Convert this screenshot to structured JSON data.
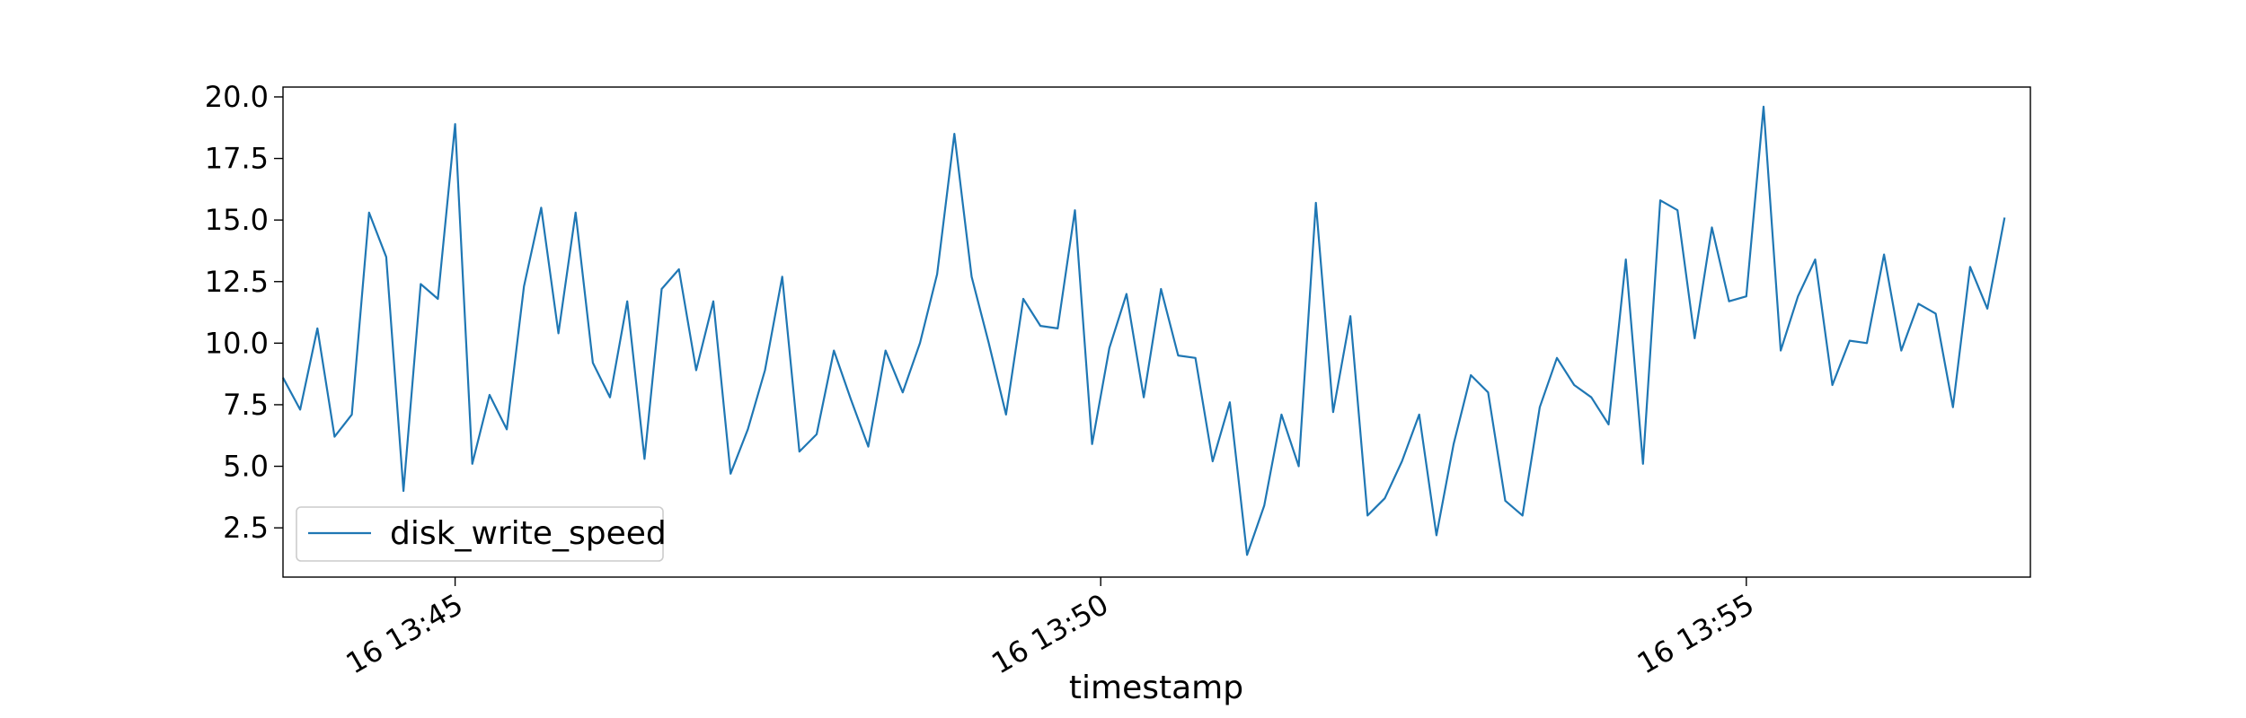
{
  "chart_data": {
    "type": "line",
    "title": "",
    "xlabel": "timestamp",
    "ylabel": "",
    "x_tick_labels": [
      "16 13:45",
      "16 13:50",
      "16 13:55"
    ],
    "y_tick_labels": [
      "2.5",
      "5.0",
      "7.5",
      "10.0",
      "12.5",
      "15.0",
      "17.5",
      "20.0"
    ],
    "x_ticks_minutes": [
      45,
      50,
      55
    ],
    "y_ticks": [
      2.5,
      5.0,
      7.5,
      10.0,
      12.5,
      15.0,
      17.5,
      20.0
    ],
    "xlim_minutes": [
      43.667,
      57.2
    ],
    "ylim": [
      0.5,
      20.4
    ],
    "grid": false,
    "legend_position": "lower-left",
    "series": [
      {
        "name": "disk_write_speed",
        "color": "#1f77b4",
        "x_start": "16 13:43:40",
        "x_step_seconds": 8,
        "values": [
          8.6,
          7.3,
          10.6,
          6.2,
          7.1,
          15.3,
          13.5,
          4.0,
          12.4,
          11.8,
          18.9,
          5.1,
          7.9,
          6.5,
          12.3,
          15.5,
          10.4,
          15.3,
          9.2,
          7.8,
          11.7,
          5.3,
          12.2,
          13.0,
          8.9,
          11.7,
          4.7,
          6.5,
          8.9,
          12.7,
          5.6,
          6.3,
          9.7,
          7.7,
          5.8,
          9.7,
          8.0,
          10.0,
          12.8,
          18.5,
          12.7,
          10.0,
          7.1,
          11.8,
          10.7,
          10.6,
          15.4,
          5.9,
          9.8,
          12.0,
          7.8,
          12.2,
          9.5,
          9.4,
          5.2,
          7.6,
          1.4,
          3.4,
          7.1,
          5.0,
          15.7,
          7.2,
          11.1,
          3.0,
          3.7,
          5.2,
          7.1,
          2.2,
          5.9,
          8.7,
          8.0,
          3.6,
          3.0,
          7.4,
          9.4,
          8.3,
          7.8,
          6.7,
          13.4,
          5.1,
          15.8,
          15.4,
          10.2,
          14.7,
          11.7,
          11.9,
          19.6,
          9.7,
          11.9,
          13.4,
          8.3,
          10.1,
          10.0,
          13.6,
          9.7,
          11.6,
          11.2,
          7.4,
          13.1,
          11.4,
          15.1
        ]
      }
    ]
  }
}
